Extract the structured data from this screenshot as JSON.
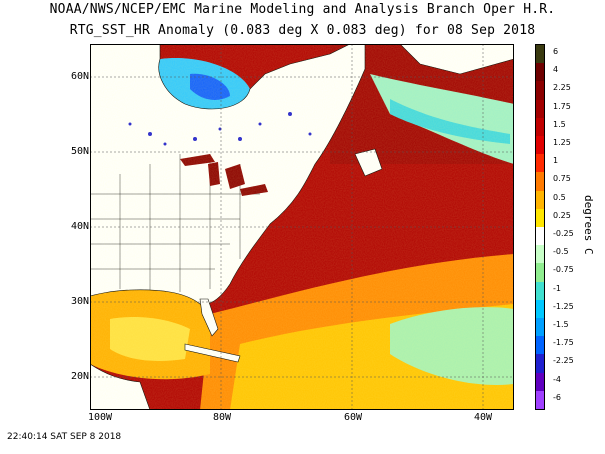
{
  "titles": {
    "line1": "NOAA/NWS/NCEP/EMC Marine Modeling and Analysis Branch Oper H.R.",
    "line2": "RTG_SST_HR Anomaly (0.083 deg X 0.083 deg) for 08 Sep 2018"
  },
  "axes": {
    "lat_labels": [
      "60N",
      "50N",
      "40N",
      "30N",
      "20N"
    ],
    "lon_labels": [
      "100W",
      "80W",
      "60W",
      "40W"
    ]
  },
  "colorbar": {
    "unit": "degrees C",
    "ticks": [
      "6",
      "4",
      "2.25",
      "1.75",
      "1.5",
      "1.25",
      "1",
      "0.75",
      "0.5",
      "0.25",
      "-0.25",
      "-0.5",
      "-0.75",
      "-1",
      "-1.25",
      "-1.5",
      "-1.75",
      "-2.25",
      "-4",
      "-6"
    ],
    "colors": [
      "#3a3a10",
      "#6e0000",
      "#8b0000",
      "#a30000",
      "#c00000",
      "#e00000",
      "#ff2a00",
      "#ff7a00",
      "#ffb400",
      "#ffe600",
      "#ffffff",
      "#c8ffc8",
      "#90ee90",
      "#40e0d0",
      "#00c8ff",
      "#00a0ff",
      "#0064ff",
      "#2020d0",
      "#6000c0",
      "#a040ff"
    ]
  },
  "timestamp": "22:40:14  SAT SEP 8 2018"
}
